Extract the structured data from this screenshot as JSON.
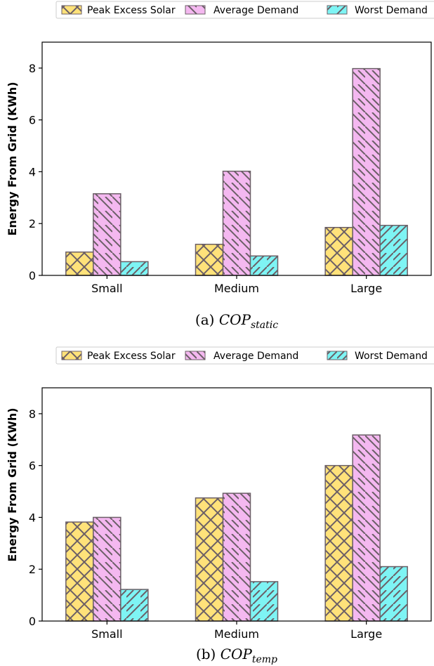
{
  "colors": {
    "peak": "#ffe27a",
    "average": "#f4b8f0",
    "worst": "#7ef4f4",
    "hatch": "#6b5f66",
    "axis": "#000000",
    "legend_border": "#cccccc"
  },
  "icons": {
    "peak": "crosshatch-swatch-icon",
    "average": "backslash-hatch-swatch-icon",
    "worst": "slash-hatch-swatch-icon"
  },
  "chart_data": [
    {
      "type": "bar",
      "caption_prefix": "(a) ",
      "caption_main": "COP",
      "caption_sub": "static",
      "ylabel": "Energy From Grid (KWh)",
      "ylim": [
        0,
        9
      ],
      "yticks": [
        "0",
        "2",
        "4",
        "6",
        "8"
      ],
      "categories": [
        "Small",
        "Medium",
        "Large"
      ],
      "legend_position": "top",
      "grid": false,
      "series": [
        {
          "name": "Peak Excess Solar",
          "values": [
            0.9,
            1.2,
            1.85
          ]
        },
        {
          "name": "Average Demand",
          "values": [
            3.15,
            4.02,
            7.98
          ]
        },
        {
          "name": "Worst Demand",
          "values": [
            0.53,
            0.75,
            1.93
          ]
        }
      ]
    },
    {
      "type": "bar",
      "caption_prefix": "(b) ",
      "caption_main": "COP",
      "caption_sub": "temp",
      "ylabel": "Energy From Grid (KWh)",
      "ylim": [
        0,
        9
      ],
      "yticks": [
        "0",
        "2",
        "4",
        "6",
        "8"
      ],
      "categories": [
        "Small",
        "Medium",
        "Large"
      ],
      "legend_position": "top",
      "grid": false,
      "series": [
        {
          "name": "Peak Excess Solar",
          "values": [
            3.82,
            4.75,
            6.0
          ]
        },
        {
          "name": "Average Demand",
          "values": [
            4.0,
            4.93,
            7.18
          ]
        },
        {
          "name": "Worst Demand",
          "values": [
            1.22,
            1.52,
            2.1
          ]
        }
      ]
    }
  ]
}
